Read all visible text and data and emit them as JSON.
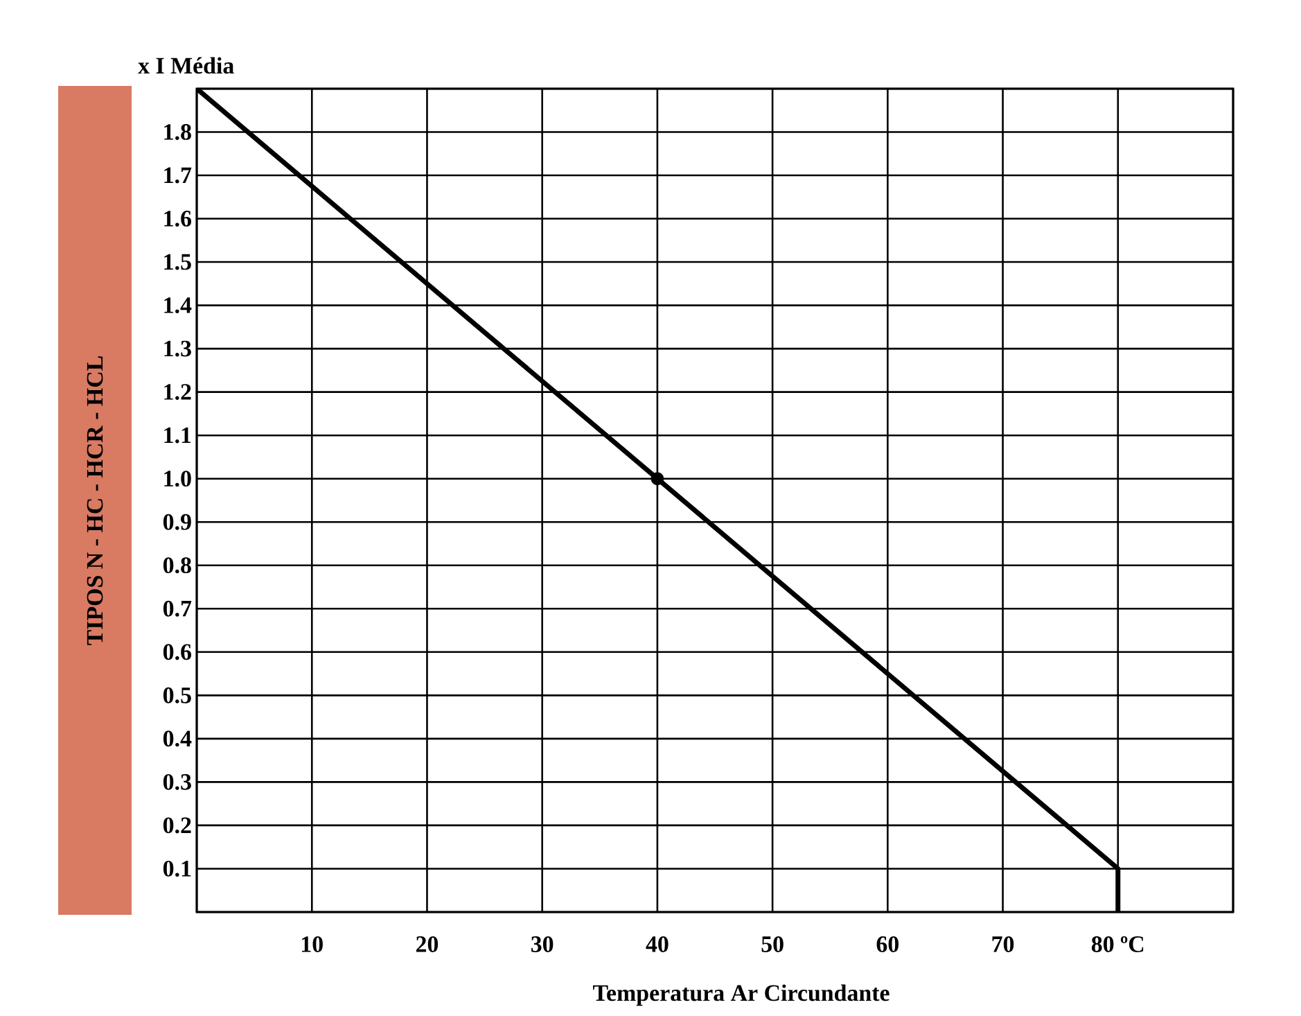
{
  "chart_data": {
    "type": "line",
    "title": "x I Média",
    "xlabel": "Temperatura Ar Circundante",
    "ylabel": "TIPOS N - HC - HCR - HCL",
    "xlim": [
      0,
      90
    ],
    "ylim": [
      0,
      1.9
    ],
    "xticks": [
      {
        "value": 0,
        "label": null
      },
      10,
      20,
      30,
      40,
      50,
      60,
      70,
      {
        "value": 80,
        "label": "80 ºC"
      },
      {
        "value": 90,
        "label": null
      }
    ],
    "yticks": [
      {
        "value": 0,
        "label": null
      },
      0.1,
      0.2,
      0.3,
      0.4,
      0.5,
      0.6,
      0.7,
      0.8,
      0.9,
      {
        "value": 1.0,
        "label": "1.0"
      },
      1.1,
      1.2,
      1.3,
      1.4,
      1.5,
      1.6,
      1.7,
      1.8,
      {
        "value": 1.9,
        "label": null
      }
    ],
    "grid": true,
    "series": [
      {
        "color": "#000000",
        "x": [
          0,
          40,
          80,
          80
        ],
        "values": [
          1.9,
          1.0,
          0.1,
          0
        ]
      },
      {
        "type": "scatter",
        "color": "#000000",
        "x": [
          40
        ],
        "values": [
          1.0
        ]
      }
    ]
  }
}
